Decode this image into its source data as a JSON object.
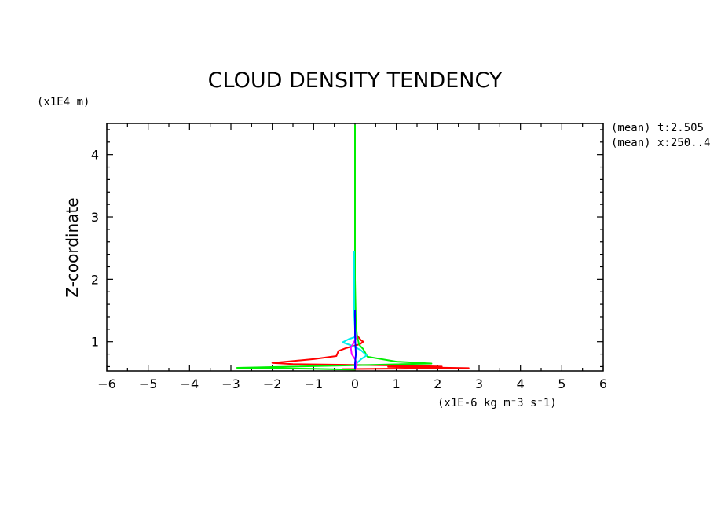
{
  "chart_data": {
    "type": "line",
    "title": "CLOUD DENSITY TENDENCY",
    "ylabel": "Z-coordinate",
    "y_unit_label": "(x1E4 m)",
    "x_unit_label": "(x1E-6 kg m^-3 s^-1)",
    "annotations": [
      "(mean) t:2.505",
      "(mean) x:250..4"
    ],
    "xlim": [
      -6,
      6
    ],
    "ylim": [
      0.53,
      4.5
    ],
    "x_ticks": [
      "-6",
      "-5",
      "-4",
      "-3",
      "-2",
      "-1",
      "0",
      "1",
      "2",
      "3",
      "4",
      "5",
      "6"
    ],
    "y_ticks": [
      "1",
      "2",
      "3",
      "4"
    ],
    "grid": false,
    "series": [
      {
        "color": "#ff0000",
        "points": [
          [
            0.0,
            1.2
          ],
          [
            0.05,
            1.1
          ],
          [
            0.15,
            1.02
          ],
          [
            0.2,
            1.0
          ],
          [
            0.12,
            0.96
          ],
          [
            -0.2,
            0.9
          ],
          [
            -0.4,
            0.85
          ],
          [
            -0.45,
            0.77
          ],
          [
            -1.0,
            0.72
          ],
          [
            -2.0,
            0.66
          ],
          [
            -1.5,
            0.64
          ],
          [
            0.9,
            0.62
          ],
          [
            2.1,
            0.6
          ],
          [
            0.8,
            0.595
          ],
          [
            2.75,
            0.575
          ],
          [
            -0.3,
            0.56
          ],
          [
            0.0,
            0.55
          ]
        ]
      },
      {
        "color": "#00ee00",
        "points": [
          [
            0.0,
            4.48
          ],
          [
            0.0,
            2.0
          ],
          [
            0.02,
            1.3
          ],
          [
            0.05,
            1.1
          ],
          [
            0.1,
            0.95
          ],
          [
            0.2,
            0.88
          ],
          [
            0.3,
            0.76
          ],
          [
            1.0,
            0.68
          ],
          [
            1.85,
            0.65
          ],
          [
            0.5,
            0.63
          ],
          [
            -2.85,
            0.58
          ],
          [
            -1.0,
            0.565
          ],
          [
            0.0,
            0.55
          ]
        ]
      },
      {
        "color": "#00eeee",
        "points": [
          [
            -0.02,
            2.45
          ],
          [
            -0.02,
            1.45
          ],
          [
            0.0,
            1.2
          ],
          [
            0.02,
            1.08
          ],
          [
            -0.15,
            1.04
          ],
          [
            -0.3,
            0.99
          ],
          [
            -0.05,
            0.93
          ],
          [
            0.15,
            0.86
          ],
          [
            0.28,
            0.78
          ],
          [
            0.15,
            0.72
          ],
          [
            0.05,
            0.66
          ],
          [
            0.0,
            0.56
          ]
        ]
      },
      {
        "color": "#ff00ff",
        "points": [
          [
            0.0,
            1.15
          ],
          [
            0.02,
            1.05
          ],
          [
            -0.05,
            0.96
          ],
          [
            -0.1,
            0.9
          ],
          [
            -0.08,
            0.8
          ],
          [
            0.0,
            0.72
          ],
          [
            0.05,
            0.63
          ],
          [
            0.0,
            0.56
          ]
        ]
      },
      {
        "color": "#0000ff",
        "points": [
          [
            0.0,
            1.5
          ],
          [
            0.0,
            1.1
          ],
          [
            0.02,
            0.8
          ],
          [
            0.0,
            0.65
          ],
          [
            0.0,
            0.56
          ]
        ]
      }
    ]
  }
}
